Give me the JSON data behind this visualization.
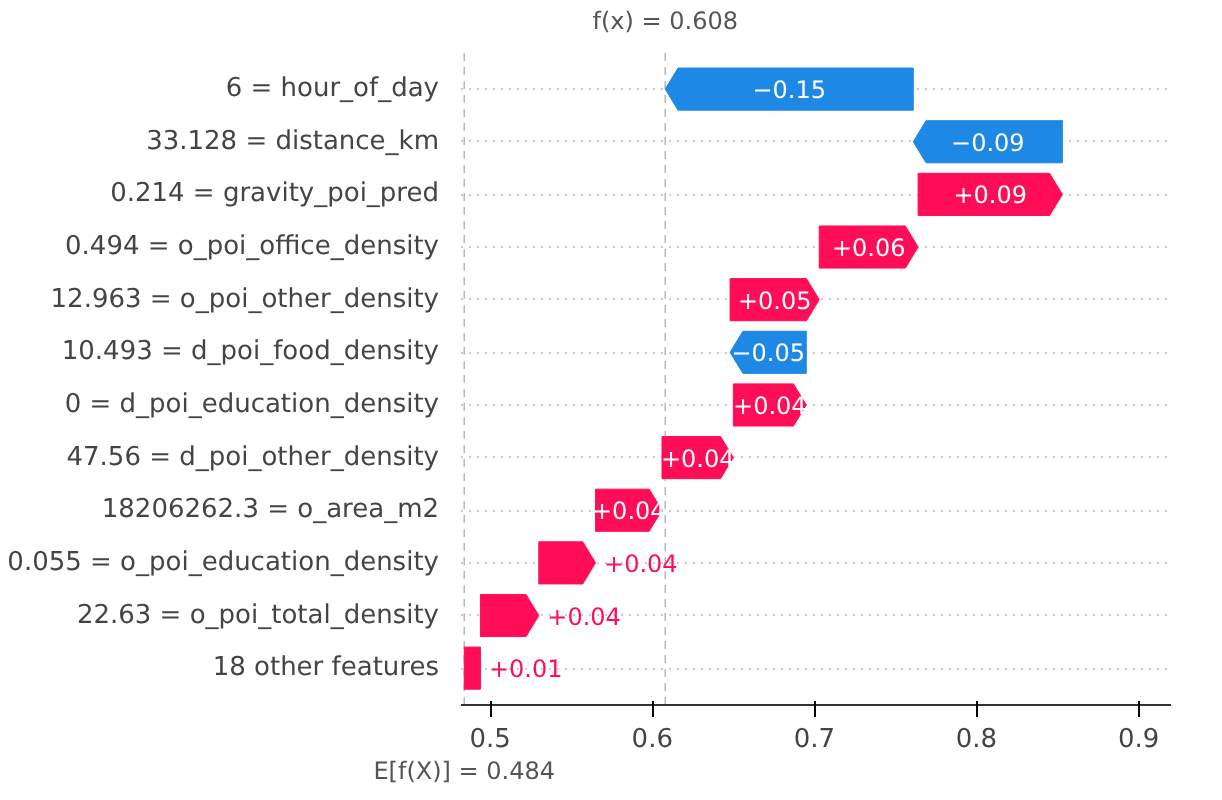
{
  "chart_data": {
    "type": "bar",
    "orientation": "horizontal",
    "categories": [
      "6 = hour_of_day",
      "33.128 = distance_km",
      "0.214 = gravity_poi_pred",
      "0.494 = o_poi_office_density",
      "12.963 = o_poi_other_density",
      "10.493 = d_poi_food_density",
      "0 = d_poi_education_density",
      "47.56 = d_poi_other_density",
      "18206262.3 = o_area_m2",
      "0.055 = o_poi_education_density",
      "22.63 = o_poi_total_density",
      "18 other features"
    ],
    "base": [
      0.761,
      0.853,
      0.764,
      0.703,
      0.648,
      0.695,
      0.65,
      0.606,
      0.565,
      0.53,
      0.494,
      0.484
    ],
    "values": [
      -0.153,
      -0.092,
      0.089,
      0.061,
      0.055,
      -0.047,
      0.045,
      0.044,
      0.041,
      0.035,
      0.036,
      0.01
    ],
    "value_labels": [
      "−0.15",
      "−0.09",
      "+0.09",
      "+0.06",
      "+0.05",
      "−0.05",
      "+0.04",
      "+0.04",
      "+0.04",
      "+0.04",
      "+0.04",
      "+0.01"
    ],
    "colors": [
      "#1e88e5",
      "#1e88e5",
      "#ff0d57",
      "#ff0d57",
      "#ff0d57",
      "#1e88e5",
      "#ff0d57",
      "#ff0d57",
      "#ff0d57",
      "#ff0d57",
      "#ff0d57",
      "#ff0d57"
    ],
    "xlim": [
      0.482,
      0.92
    ],
    "xticks": [
      0.5,
      0.6,
      0.7,
      0.8,
      0.9
    ],
    "grid": "y",
    "ref_lines": [
      {
        "axis": "x",
        "value": 0.608,
        "label": "f(x) = 0.608",
        "line_style": "dashed",
        "color": "#bbbbbb"
      },
      {
        "axis": "x",
        "value": 0.484,
        "label": "E[f(X)] = 0.484",
        "line_style": "dashed",
        "color": "#bbbbbb"
      }
    ]
  }
}
